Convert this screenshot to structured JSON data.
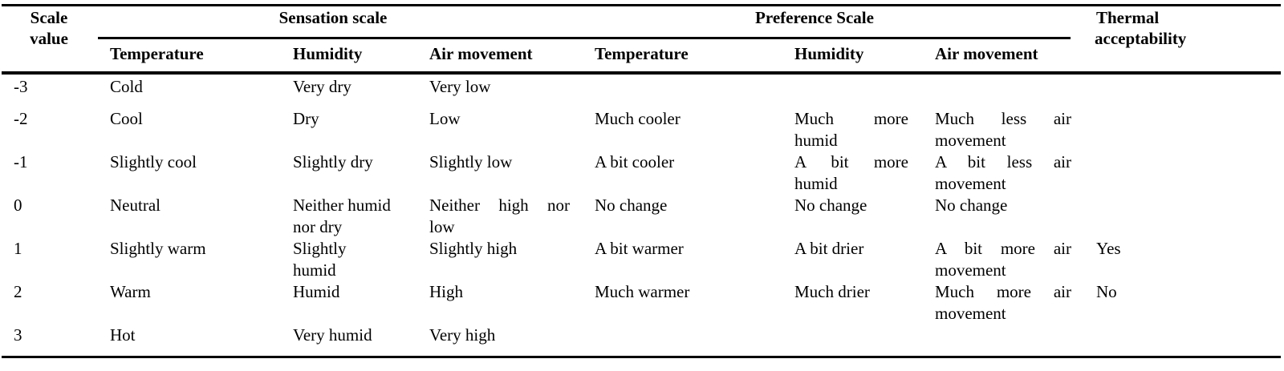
{
  "headers": {
    "scale_value": [
      "Scale",
      "value"
    ],
    "sensation_scale": "Sensation scale",
    "preference_scale": "Preference Scale",
    "thermal_acceptability": [
      "Thermal",
      "acceptability"
    ],
    "sensation": {
      "temperature": "Temperature",
      "humidity": "Humidity",
      "air_movement": "Air movement"
    },
    "preference": {
      "temperature": "Temperature",
      "humidity": "Humidity",
      "air_movement": "Air movement"
    }
  },
  "rows": [
    {
      "scale": "-3",
      "s_temp": "Cold",
      "s_hum": [
        "Very dry",
        ""
      ],
      "s_air": [
        "Very low",
        ""
      ],
      "p_temp": "",
      "p_hum": [
        "",
        ""
      ],
      "p_air": [
        "",
        ""
      ],
      "accept": ""
    },
    {
      "scale": "-2",
      "s_temp": "Cool",
      "s_hum": [
        "Dry",
        ""
      ],
      "s_air": [
        "Low",
        ""
      ],
      "p_temp": "Much cooler",
      "p_hum": [
        "Much more",
        "humid"
      ],
      "p_air": [
        "Much less air",
        "movement"
      ],
      "accept": ""
    },
    {
      "scale": "-1",
      "s_temp": "Slightly cool",
      "s_hum": [
        "Slightly dry",
        ""
      ],
      "s_air": [
        "Slightly low",
        ""
      ],
      "p_temp": "A bit cooler",
      "p_hum": [
        "A bit more",
        "humid"
      ],
      "p_air": [
        "A bit less air",
        "movement"
      ],
      "accept": ""
    },
    {
      "scale": "0",
      "s_temp": "Neutral",
      "s_hum": [
        "Neither humid",
        "nor dry"
      ],
      "s_air": [
        "Neither high nor",
        "low"
      ],
      "p_temp": "No change",
      "p_hum": [
        "No change",
        ""
      ],
      "p_air": [
        "No change",
        ""
      ],
      "accept": ""
    },
    {
      "scale": "1",
      "s_temp": "Slightly warm",
      "s_hum": [
        "Slightly",
        "humid"
      ],
      "s_air": [
        "Slightly high",
        ""
      ],
      "p_temp": "A bit warmer",
      "p_hum": [
        "A bit drier",
        ""
      ],
      "p_air": [
        "A bit more air",
        "movement"
      ],
      "accept": "Yes"
    },
    {
      "scale": "2",
      "s_temp": "Warm",
      "s_hum": [
        "Humid",
        ""
      ],
      "s_air": [
        "High",
        ""
      ],
      "p_temp": "Much warmer",
      "p_hum": [
        "Much drier",
        ""
      ],
      "p_air": [
        "Much more air",
        "movement"
      ],
      "accept": "No"
    },
    {
      "scale": "3",
      "s_temp": "Hot",
      "s_hum": [
        "Very humid",
        ""
      ],
      "s_air": [
        "Very high",
        ""
      ],
      "p_temp": "",
      "p_hum": [
        "",
        ""
      ],
      "p_air": [
        "",
        ""
      ],
      "accept": ""
    }
  ]
}
